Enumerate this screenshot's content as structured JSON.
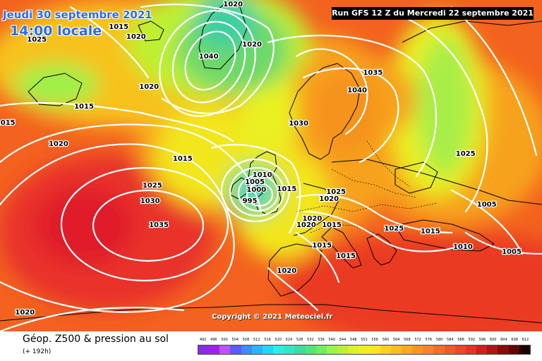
{
  "header": {
    "date": "Jeudi 30 septembre 2021",
    "local_time": "14:00 locale",
    "run_info": "Run GFS 12 Z du Mercredi 22 septembre 2021"
  },
  "map": {
    "copyright": "Copyright © 2021 Meteociel.fr",
    "pressure_labels": [
      {
        "value": "1020",
        "lon": 0.43,
        "lat": 0.013
      },
      {
        "value": "1015",
        "lon": 0.219,
        "lat": 0.081
      },
      {
        "value": "1025",
        "lon": 0.068,
        "lat": 0.119
      },
      {
        "value": "1020",
        "lon": 0.251,
        "lat": 0.111
      },
      {
        "value": "1020",
        "lon": 0.465,
        "lat": 0.134
      },
      {
        "value": "1040",
        "lon": 0.385,
        "lat": 0.17
      },
      {
        "value": "1015",
        "lon": 0.155,
        "lat": 0.321
      },
      {
        "value": "1015",
        "lon": 0.01,
        "lat": 0.37
      },
      {
        "value": "1020",
        "lon": 0.275,
        "lat": 0.262
      },
      {
        "value": "1035",
        "lon": 0.688,
        "lat": 0.219
      },
      {
        "value": "1040",
        "lon": 0.659,
        "lat": 0.272
      },
      {
        "value": "1030",
        "lon": 0.551,
        "lat": 0.372
      },
      {
        "value": "1020",
        "lon": 0.108,
        "lat": 0.434
      },
      {
        "value": "1015",
        "lon": 0.337,
        "lat": 0.479
      },
      {
        "value": "1010",
        "lon": 0.484,
        "lat": 0.528
      },
      {
        "value": "1005",
        "lon": 0.47,
        "lat": 0.549
      },
      {
        "value": "1000",
        "lon": 0.473,
        "lat": 0.572
      },
      {
        "value": "995",
        "lon": 0.461,
        "lat": 0.606
      },
      {
        "value": "1015",
        "lon": 0.529,
        "lat": 0.57
      },
      {
        "value": "1025",
        "lon": 0.281,
        "lat": 0.56
      },
      {
        "value": "1030",
        "lon": 0.277,
        "lat": 0.606
      },
      {
        "value": "1035",
        "lon": 0.293,
        "lat": 0.679
      },
      {
        "value": "1025",
        "lon": 0.62,
        "lat": 0.579
      },
      {
        "value": "1020",
        "lon": 0.607,
        "lat": 0.6
      },
      {
        "value": "1020",
        "lon": 0.576,
        "lat": 0.66
      },
      {
        "value": "1020",
        "lon": 0.565,
        "lat": 0.679
      },
      {
        "value": "1015",
        "lon": 0.612,
        "lat": 0.679
      },
      {
        "value": "1025",
        "lon": 0.727,
        "lat": 0.689
      },
      {
        "value": "1015",
        "lon": 0.794,
        "lat": 0.698
      },
      {
        "value": "1015",
        "lon": 0.594,
        "lat": 0.74
      },
      {
        "value": "1015",
        "lon": 0.638,
        "lat": 0.772
      },
      {
        "value": "1025",
        "lon": 0.859,
        "lat": 0.464
      },
      {
        "value": "1005",
        "lon": 0.898,
        "lat": 0.617
      },
      {
        "value": "1010",
        "lon": 0.854,
        "lat": 0.745
      },
      {
        "value": "1005",
        "lon": 0.944,
        "lat": 0.76
      },
      {
        "value": "1020",
        "lon": 0.529,
        "lat": 0.817
      },
      {
        "value": "1020",
        "lon": 0.046,
        "lat": 0.943
      }
    ]
  },
  "legend": {
    "title": "Géop. Z500 & pression au sol",
    "forecast_hour": "(+ 192h)",
    "scale_values": [
      "492",
      "496",
      "500",
      "504",
      "508",
      "512",
      "516",
      "520",
      "524",
      "528",
      "532",
      "536",
      "540",
      "544",
      "548",
      "552",
      "556",
      "560",
      "564",
      "568",
      "572",
      "576",
      "580",
      "584",
      "588",
      "592",
      "596",
      "600",
      "604",
      "608",
      "612"
    ],
    "scale_colors": [
      "#8a2be2",
      "#a020f0",
      "#c050ff",
      "#5a5aff",
      "#3c8cff",
      "#28b4ff",
      "#1ed7ff",
      "#28f0e6",
      "#32e6c8",
      "#3cdca0",
      "#50e678",
      "#6ef05a",
      "#96f546",
      "#bef032",
      "#dcf028",
      "#f0f020",
      "#fae61e",
      "#fad21e",
      "#fabe1e",
      "#faaa1e",
      "#fa961e",
      "#fa8228",
      "#f56e28",
      "#f05a28",
      "#eb4628",
      "#e63228",
      "#d21e1e",
      "#b41414",
      "#8c0a0a",
      "#640505",
      "#1e0000"
    ]
  }
}
